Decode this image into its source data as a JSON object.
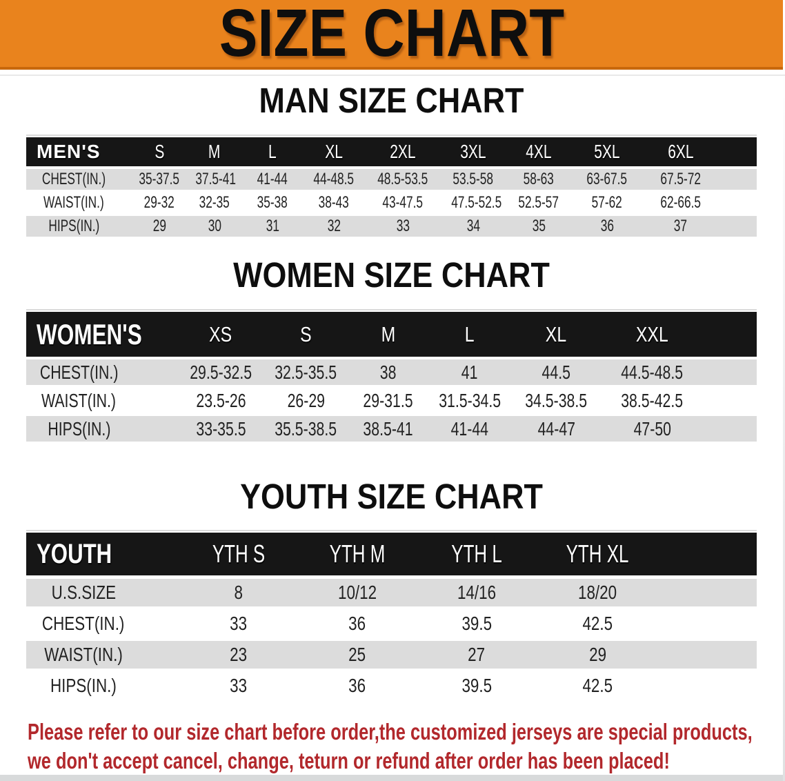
{
  "banner": {
    "title": "SIZE CHART",
    "bg": "#E9831D",
    "border": "#C8680C"
  },
  "colors": {
    "header_bg": "#161616",
    "row_gray": "#DCDCDC",
    "footnote_red": "#B2282C"
  },
  "sections": [
    {
      "title": "MAN SIZE CHART",
      "table": {
        "header": [
          "MEN'S",
          "S",
          "M",
          "L",
          "XL",
          "2XL",
          "3XL",
          "4XL",
          "5XL",
          "6XL"
        ],
        "rows": [
          [
            "CHEST(IN.)",
            "35-37.5",
            "37.5-41",
            "41-44",
            "44-48.5",
            "48.5-53.5",
            "53.5-58",
            "58-63",
            "63-67.5",
            "67.5-72"
          ],
          [
            "WAIST(IN.)",
            "29-32",
            "32-35",
            "35-38",
            "38-43",
            "43-47.5",
            "47.5-52.5",
            "52.5-57",
            "57-62",
            "62-66.5"
          ],
          [
            "HIPS(IN.)",
            "29",
            "30",
            "31",
            "32",
            "33",
            "34",
            "35",
            "36",
            "37"
          ]
        ]
      }
    },
    {
      "title": "WOMEN SIZE CHART",
      "table": {
        "header": [
          "WOMEN'S",
          "XS",
          "S",
          "M",
          "L",
          "XL",
          "XXL"
        ],
        "rows": [
          [
            "CHEST(IN.)",
            "29.5-32.5",
            "32.5-35.5",
            "38",
            "41",
            "44.5",
            "44.5-48.5"
          ],
          [
            "WAIST(IN.)",
            "23.5-26",
            "26-29",
            "29-31.5",
            "31.5-34.5",
            "34.5-38.5",
            "38.5-42.5"
          ],
          [
            "HIPS(IN.)",
            "33-35.5",
            "35.5-38.5",
            "38.5-41",
            "41-44",
            "44-47",
            "47-50"
          ]
        ]
      }
    },
    {
      "title": "YOUTH SIZE CHART",
      "table": {
        "header": [
          "YOUTH",
          "YTH S",
          "YTH M",
          "YTH L",
          "YTH XL"
        ],
        "rows": [
          [
            "U.S.SIZE",
            "8",
            "10/12",
            "14/16",
            "18/20"
          ],
          [
            "CHEST(IN.)",
            "33",
            "36",
            "39.5",
            "42.5"
          ],
          [
            "WAIST(IN.)",
            "23",
            "25",
            "27",
            "29"
          ],
          [
            "HIPS(IN.)",
            "33",
            "36",
            "39.5",
            "42.5"
          ]
        ]
      }
    }
  ],
  "footnote": {
    "line1": "Please refer to our size chart before order,the customized jerseys are special products,",
    "line2": "we don't accept cancel, change, teturn or refund after order has been placed!"
  }
}
